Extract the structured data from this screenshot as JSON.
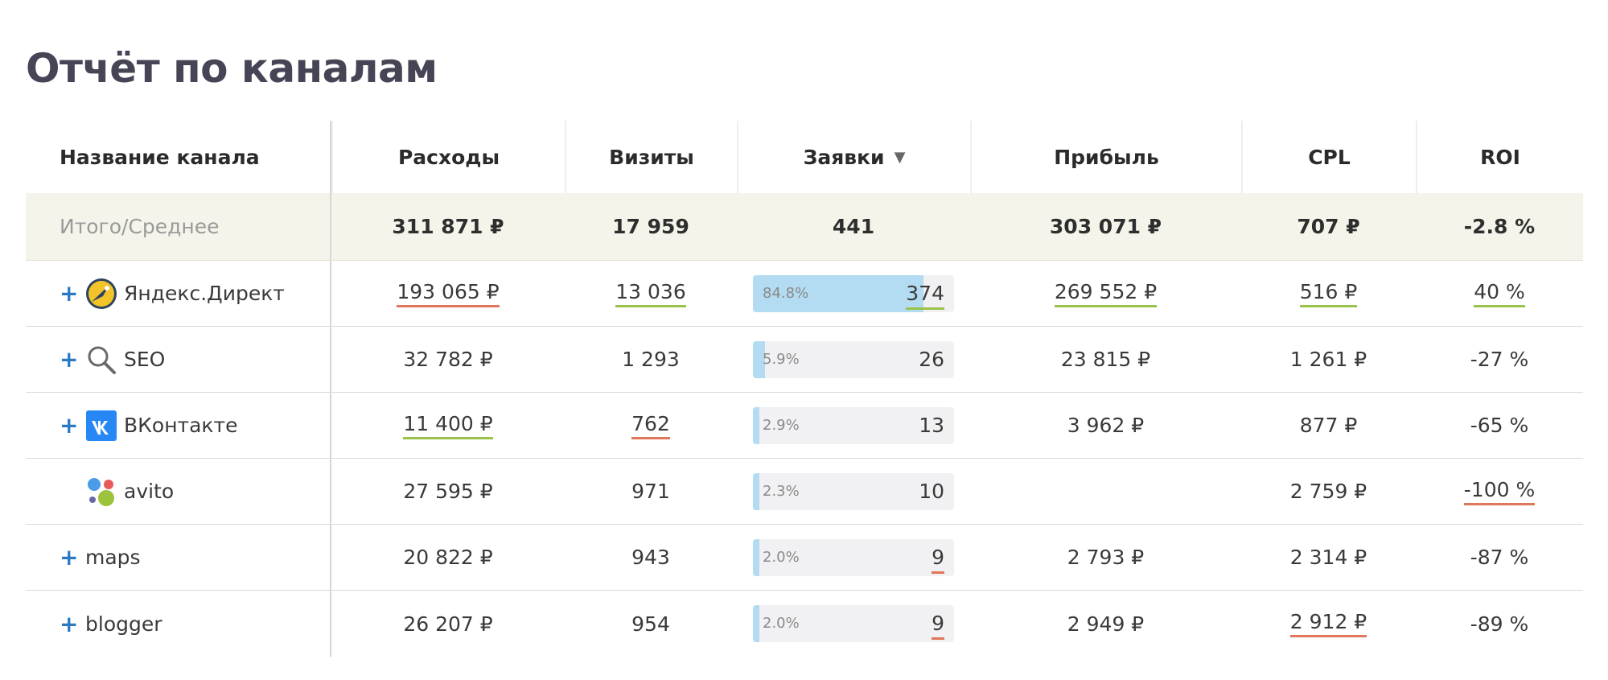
{
  "page_title": "Отчёт по каналам",
  "columns": {
    "name": "Название канала",
    "expenses": "Расходы",
    "visits": "Визиты",
    "leads": "Заявки",
    "profit": "Прибыль",
    "cpl": "CPL",
    "roi": "ROI"
  },
  "sort_icon": "▼",
  "total": {
    "label": "Итого/Среднее",
    "expenses": "311 871 ₽",
    "visits": "17 959",
    "leads": "441",
    "profit": "303 071 ₽",
    "cpl": "707 ₽",
    "roi": "-2.8 %"
  },
  "expand_symbol": "+",
  "rows": [
    {
      "name": "Яндекс.Директ",
      "icon": "yandex-direct-icon",
      "expandable": true,
      "expenses": "193 065 ₽",
      "visits": "13 036",
      "leads_pct": "84.8%",
      "leads_fraction": 0.848,
      "leads": "374",
      "profit": "269 552 ₽",
      "cpl": "516 ₽",
      "roi": "40 %"
    },
    {
      "name": "SEO",
      "icon": "search-icon",
      "expandable": true,
      "expenses": "32 782 ₽",
      "visits": "1 293",
      "leads_pct": "5.9%",
      "leads_fraction": 0.059,
      "leads": "26",
      "profit": "23 815 ₽",
      "cpl": "1 261 ₽",
      "roi": "-27 %"
    },
    {
      "name": "ВКонтакте",
      "icon": "vk-icon",
      "expandable": true,
      "expenses": "11 400 ₽",
      "visits": "762",
      "leads_pct": "2.9%",
      "leads_fraction": 0.029,
      "leads": "13",
      "profit": "3 962 ₽",
      "cpl": "877 ₽",
      "roi": "-65 %"
    },
    {
      "name": "avito",
      "icon": "avito-icon",
      "expandable": false,
      "expenses": "27 595 ₽",
      "visits": "971",
      "leads_pct": "2.3%",
      "leads_fraction": 0.023,
      "leads": "10",
      "profit": "",
      "cpl": "2 759 ₽",
      "roi": "-100 %"
    },
    {
      "name": "maps",
      "icon": "",
      "expandable": true,
      "expenses": "20 822 ₽",
      "visits": "943",
      "leads_pct": "2.0%",
      "leads_fraction": 0.02,
      "leads": "9",
      "profit": "2 793 ₽",
      "cpl": "2 314 ₽",
      "roi": "-87 %"
    },
    {
      "name": "blogger",
      "icon": "",
      "expandable": true,
      "expenses": "26 207 ₽",
      "visits": "954",
      "leads_pct": "2.0%",
      "leads_fraction": 0.02,
      "leads": "9",
      "profit": "2 949 ₽",
      "cpl": "2 912 ₽",
      "roi": "-89 %"
    }
  ],
  "colors": {
    "title": "#454556",
    "total_bg": "#f5f4ea",
    "bar_fill": "#b3dbf2",
    "bar_bg": "#f1f1f3",
    "underline_red": "#e0765a",
    "underline_green": "#9bc24a",
    "expand": "#2a79c2"
  }
}
